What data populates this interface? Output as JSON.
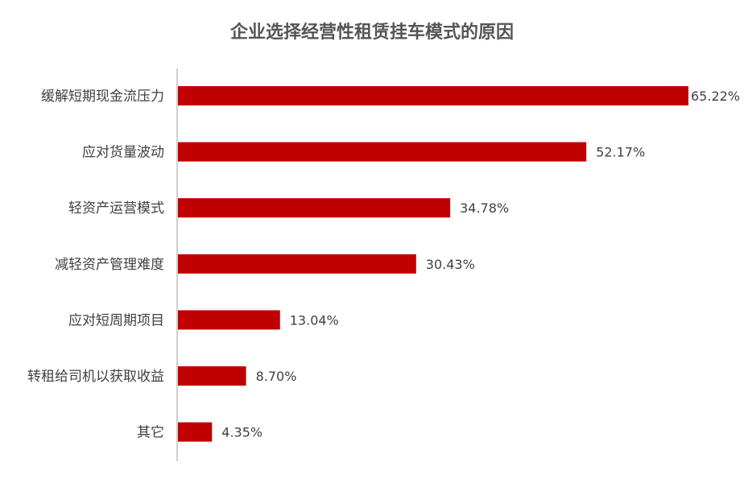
{
  "chart_data": {
    "type": "bar",
    "orientation": "horizontal",
    "title": "企业选择经营性租赁挂车模式的原因",
    "categories": [
      "缓解短期现金流压力",
      "应对货量波动",
      "轻资产运营模式",
      "减轻资产管理难度",
      "应对短周期项目",
      "转租给司机以获取收益",
      "其它"
    ],
    "values": [
      65.22,
      52.17,
      34.78,
      30.43,
      13.04,
      8.7,
      4.35
    ],
    "value_labels": [
      "65.22%",
      "52.17%",
      "34.78%",
      "30.43%",
      "13.04%",
      "8.70%",
      "4.35%"
    ],
    "unit": "%",
    "xlim": [
      0,
      65.22
    ],
    "grid": false,
    "legend": "none",
    "bar_color": "#C00000",
    "axis_color": "#BFBFBF"
  }
}
